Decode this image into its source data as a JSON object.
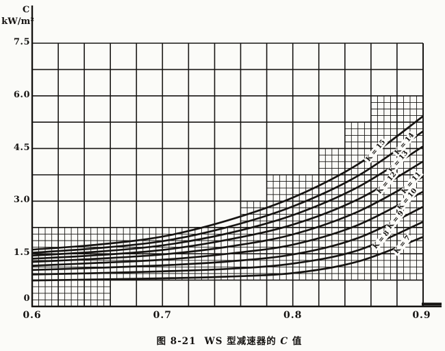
{
  "page": {
    "background": "#fbfbf8",
    "ink": "#161412"
  },
  "figure": {
    "caption_prefix": "图 8-21",
    "caption_main": "WS 型减速器的",
    "caption_var": "C",
    "caption_suffix": "值"
  },
  "chart_data": {
    "type": "line",
    "title": "图 8-21 WS型减速器的C值",
    "xlabel": "",
    "ylabel_line1": "C",
    "ylabel_line2": "kW/m²",
    "xlim": [
      0.6,
      0.9
    ],
    "ylim": [
      0,
      7.5
    ],
    "x_tick_values": [
      0.6,
      0.7,
      0.8,
      0.9
    ],
    "x_tick_labels": [
      "0.6",
      "0.7",
      "0.8",
      "0.9"
    ],
    "y_tick_values": [
      0,
      1.5,
      3.0,
      4.5,
      6.0,
      7.5
    ],
    "y_tick_labels": [
      "0",
      "1.5",
      "3.0",
      "4.5",
      "6.0",
      "7.5"
    ],
    "grid": {
      "major_dx": 0.02,
      "major_dy": 0.75,
      "fine_subdivisions": 4,
      "legend": "none"
    },
    "fine_grid_steps": [
      {
        "x0": 0.6,
        "x1": 0.66,
        "c_top": 2.25,
        "c_bottom": 0.0
      },
      {
        "x0": 0.66,
        "x1": 0.76,
        "c_top": 2.25,
        "c_bottom": 0.75
      },
      {
        "x0": 0.76,
        "x1": 0.78,
        "c_top": 3.0,
        "c_bottom": 0.75
      },
      {
        "x0": 0.78,
        "x1": 0.82,
        "c_top": 3.75,
        "c_bottom": 0.75
      },
      {
        "x0": 0.82,
        "x1": 0.84,
        "c_top": 4.5,
        "c_bottom": 0.75
      },
      {
        "x0": 0.84,
        "x1": 0.86,
        "c_top": 5.25,
        "c_bottom": 0.75
      },
      {
        "x0": 0.86,
        "x1": 0.9,
        "c_top": 6.0,
        "c_bottom": 0.75
      }
    ],
    "x_samples": [
      0.6,
      0.65,
      0.7,
      0.75,
      0.8,
      0.85,
      0.9
    ],
    "series": [
      {
        "k": 15,
        "label": "K = 15",
        "values": [
          1.62,
          1.76,
          1.99,
          2.45,
          3.1,
          4.05,
          5.42
        ],
        "label_at_x": 0.864
      },
      {
        "k": 14,
        "label": "K = 14",
        "values": [
          1.53,
          1.66,
          1.86,
          2.26,
          2.85,
          3.72,
          4.99
        ],
        "label_at_x": 0.886
      },
      {
        "k": 13,
        "label": "K = 13",
        "values": [
          1.45,
          1.56,
          1.74,
          2.08,
          2.6,
          3.4,
          4.56
        ],
        "label_at_x": 0.881
      },
      {
        "k": 12,
        "label": "K = 12",
        "values": [
          1.36,
          1.46,
          1.61,
          1.9,
          2.33,
          3.05,
          4.13
        ],
        "label_at_x": 0.872
      },
      {
        "k": 11,
        "label": "K = 11",
        "values": [
          1.27,
          1.36,
          1.48,
          1.7,
          2.05,
          2.7,
          3.7
        ],
        "label_at_x": 0.891
      },
      {
        "k": 10,
        "label": "K = 10",
        "values": [
          1.16,
          1.24,
          1.33,
          1.5,
          1.76,
          2.32,
          3.27
        ],
        "label_at_x": 0.888
      },
      {
        "k": 9,
        "label": "K = 9",
        "values": [
          1.04,
          1.1,
          1.17,
          1.28,
          1.48,
          1.95,
          2.84
        ],
        "label_at_x": 0.879
      },
      {
        "k": 8,
        "label": "K = 8",
        "values": [
          0.91,
          0.95,
          1.0,
          1.07,
          1.22,
          1.6,
          2.41
        ],
        "label_at_x": 0.868
      },
      {
        "k": 7,
        "label": "K = 7",
        "values": [
          0.74,
          0.77,
          0.8,
          0.85,
          0.95,
          1.28,
          1.98
        ],
        "label_at_x": 0.884
      }
    ]
  }
}
